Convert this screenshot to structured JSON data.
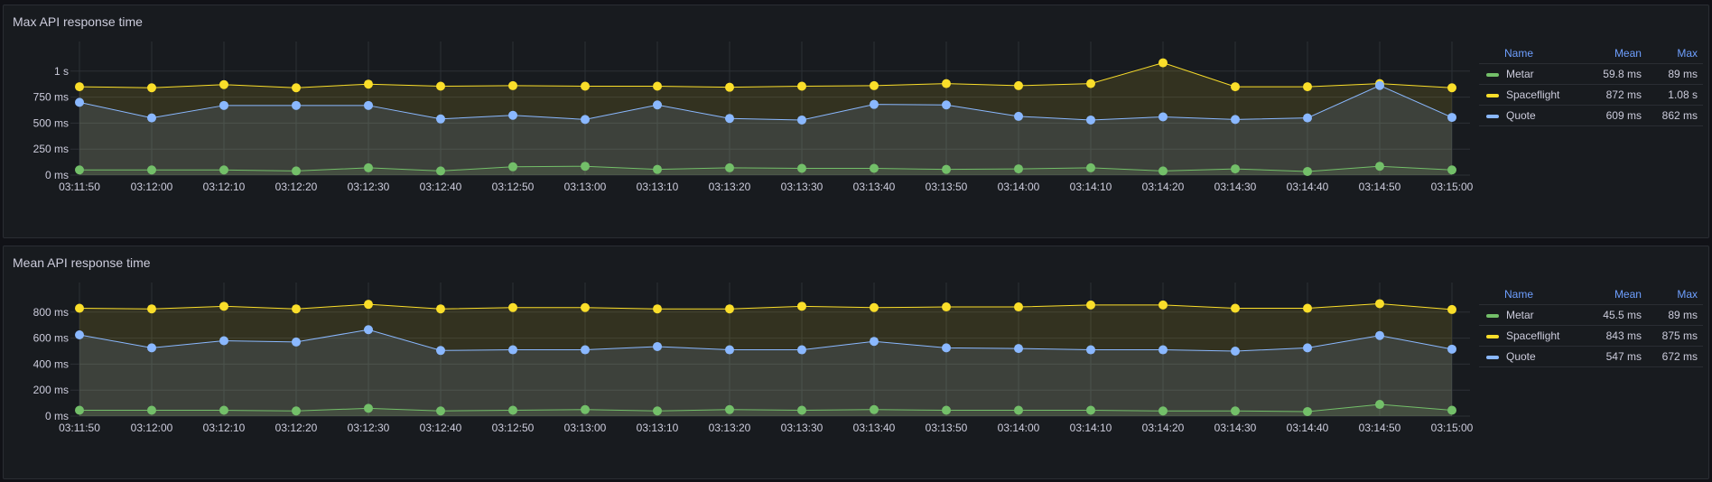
{
  "colors": {
    "metar": "#73bf69",
    "spaceflight": "#fade2a",
    "quote": "#8ab8ff",
    "grid": "#2c3036",
    "axis_text": "#ccccdc"
  },
  "x_labels": [
    "03:11:50",
    "03:12:00",
    "03:12:10",
    "03:12:20",
    "03:12:30",
    "03:12:40",
    "03:12:50",
    "03:13:00",
    "03:13:10",
    "03:13:20",
    "03:13:30",
    "03:13:40",
    "03:13:50",
    "03:14:00",
    "03:14:10",
    "03:14:20",
    "03:14:30",
    "03:14:40",
    "03:14:50",
    "03:15:00"
  ],
  "panels": [
    {
      "title": "Max API response time",
      "legend_headers": {
        "name": "Name",
        "mean": "Mean",
        "max": "Max"
      },
      "legend": [
        {
          "name": "Metar",
          "mean": "59.8 ms",
          "max": "89 ms",
          "color_key": "metar"
        },
        {
          "name": "Spaceflight",
          "mean": "872 ms",
          "max": "1.08 s",
          "color_key": "spaceflight"
        },
        {
          "name": "Quote",
          "mean": "609 ms",
          "max": "862 ms",
          "color_key": "quote"
        }
      ]
    },
    {
      "title": "Mean API response time",
      "legend_headers": {
        "name": "Name",
        "mean": "Mean",
        "max": "Max"
      },
      "legend": [
        {
          "name": "Metar",
          "mean": "45.5 ms",
          "max": "89 ms",
          "color_key": "metar"
        },
        {
          "name": "Spaceflight",
          "mean": "843 ms",
          "max": "875 ms",
          "color_key": "spaceflight"
        },
        {
          "name": "Quote",
          "mean": "547 ms",
          "max": "672 ms",
          "color_key": "quote"
        }
      ]
    }
  ],
  "chart_data": [
    {
      "type": "area",
      "title": "Max API response time",
      "x": [
        "03:11:50",
        "03:12:00",
        "03:12:10",
        "03:12:20",
        "03:12:30",
        "03:12:40",
        "03:12:50",
        "03:13:00",
        "03:13:10",
        "03:13:20",
        "03:13:30",
        "03:13:40",
        "03:13:50",
        "03:14:00",
        "03:14:10",
        "03:14:20",
        "03:14:30",
        "03:14:40",
        "03:14:50",
        "03:15:00"
      ],
      "ylim": [
        0,
        1250
      ],
      "y_ticks": [
        0,
        250,
        500,
        750,
        1000
      ],
      "y_tick_labels": [
        "0 ms",
        "250 ms",
        "500 ms",
        "750 ms",
        "1 s"
      ],
      "grid": true,
      "legend_position": "right",
      "series": [
        {
          "name": "Metar",
          "color_key": "metar",
          "values": [
            50,
            50,
            50,
            40,
            70,
            40,
            80,
            85,
            55,
            70,
            65,
            65,
            55,
            60,
            70,
            40,
            60,
            35,
            85,
            50
          ]
        },
        {
          "name": "Spaceflight",
          "color_key": "spaceflight",
          "values": [
            850,
            840,
            870,
            840,
            875,
            855,
            860,
            855,
            855,
            845,
            855,
            860,
            880,
            860,
            880,
            1080,
            850,
            850,
            880,
            840
          ]
        },
        {
          "name": "Quote",
          "color_key": "quote",
          "values": [
            700,
            550,
            670,
            670,
            670,
            540,
            575,
            535,
            675,
            545,
            530,
            680,
            675,
            565,
            530,
            560,
            535,
            550,
            862,
            555
          ]
        }
      ]
    },
    {
      "type": "area",
      "title": "Mean API response time",
      "x": [
        "03:11:50",
        "03:12:00",
        "03:12:10",
        "03:12:20",
        "03:12:30",
        "03:12:40",
        "03:12:50",
        "03:13:00",
        "03:13:10",
        "03:13:20",
        "03:13:30",
        "03:13:40",
        "03:13:50",
        "03:14:00",
        "03:14:10",
        "03:14:20",
        "03:14:30",
        "03:14:40",
        "03:14:50",
        "03:15:00"
      ],
      "ylim": [
        0,
        1000
      ],
      "y_ticks": [
        0,
        200,
        400,
        600,
        800
      ],
      "y_tick_labels": [
        "0 ms",
        "200 ms",
        "400 ms",
        "600 ms",
        "800 ms"
      ],
      "grid": true,
      "legend_position": "right",
      "series": [
        {
          "name": "Metar",
          "color_key": "metar",
          "values": [
            45,
            45,
            45,
            40,
            60,
            40,
            45,
            50,
            40,
            50,
            45,
            50,
            45,
            45,
            45,
            40,
            40,
            35,
            90,
            45
          ]
        },
        {
          "name": "Spaceflight",
          "color_key": "spaceflight",
          "values": [
            830,
            825,
            845,
            825,
            860,
            825,
            835,
            835,
            825,
            825,
            845,
            835,
            840,
            840,
            855,
            855,
            830,
            830,
            865,
            820
          ]
        },
        {
          "name": "Quote",
          "color_key": "quote",
          "values": [
            625,
            525,
            580,
            570,
            665,
            505,
            510,
            510,
            535,
            510,
            510,
            575,
            525,
            520,
            510,
            510,
            500,
            525,
            620,
            515
          ]
        }
      ]
    }
  ]
}
